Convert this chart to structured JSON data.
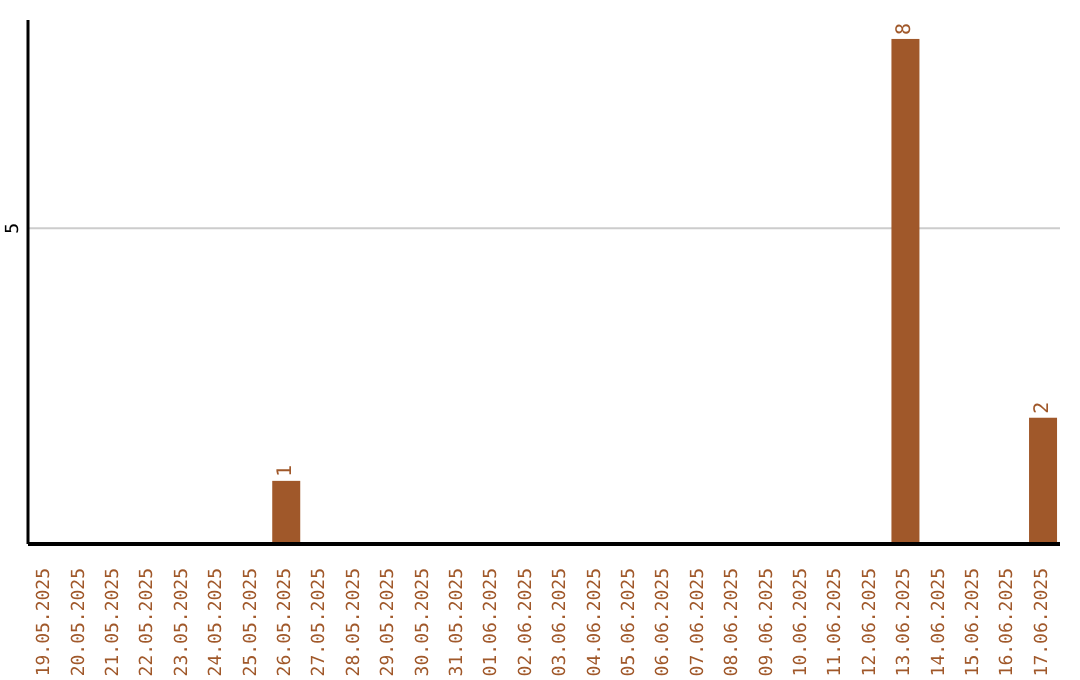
{
  "chart_data": {
    "type": "bar",
    "categories": [
      "19.05.2025",
      "20.05.2025",
      "21.05.2025",
      "22.05.2025",
      "23.05.2025",
      "24.05.2025",
      "25.05.2025",
      "26.05.2025",
      "27.05.2025",
      "28.05.2025",
      "29.05.2025",
      "30.05.2025",
      "31.05.2025",
      "01.06.2025",
      "02.06.2025",
      "03.06.2025",
      "04.06.2025",
      "05.06.2025",
      "06.06.2025",
      "07.06.2025",
      "08.06.2025",
      "09.06.2025",
      "10.06.2025",
      "11.06.2025",
      "12.06.2025",
      "13.06.2025",
      "14.06.2025",
      "15.06.2025",
      "16.06.2025",
      "17.06.2025"
    ],
    "values": [
      0,
      0,
      0,
      0,
      0,
      0,
      0,
      1,
      0,
      0,
      0,
      0,
      0,
      0,
      0,
      0,
      0,
      0,
      0,
      0,
      0,
      0,
      0,
      0,
      0,
      8,
      0,
      0,
      0,
      2
    ],
    "value_labels": [
      null,
      null,
      null,
      null,
      null,
      null,
      null,
      "1",
      null,
      null,
      null,
      null,
      null,
      null,
      null,
      null,
      null,
      null,
      null,
      null,
      null,
      null,
      null,
      null,
      null,
      "8",
      null,
      null,
      null,
      "2"
    ],
    "color": "#a0582a",
    "ylim": [
      0,
      8.3
    ],
    "yticks": [
      5
    ],
    "grid": "y"
  }
}
